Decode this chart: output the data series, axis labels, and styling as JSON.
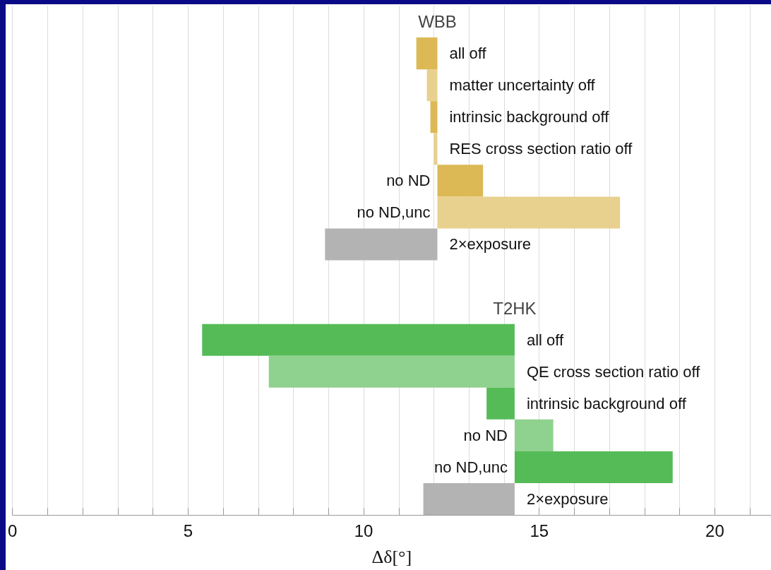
{
  "chart_data": {
    "type": "bar",
    "orientation": "horizontal",
    "xlabel": "Δδ[°]",
    "categories": [
      null,
      "all off",
      "matter uncertainty off",
      "intrinsic background off",
      "RES cross section ratio off",
      "no ND",
      "no ND,unc",
      "2×exposure",
      null,
      null,
      "all off",
      "QE cross section ratio off",
      "intrinsic background off",
      "no ND",
      "no ND,unc",
      "2×exposure"
    ],
    "base": [
      null,
      12.1,
      12.1,
      12.1,
      12.1,
      12.1,
      12.1,
      12.1,
      null,
      null,
      14.3,
      14.3,
      14.3,
      14.3,
      14.3,
      14.3
    ],
    "values": [
      null,
      -0.6,
      -0.3,
      -0.2,
      -0.1,
      1.3,
      5.2,
      -3.2,
      null,
      null,
      -8.9,
      -7.0,
      -0.8,
      1.1,
      4.5,
      -2.6
    ],
    "colors": [
      null,
      "#dcb955",
      "#e8d08e",
      "#dcb955",
      "#e8d08e",
      "#dcb955",
      "#e8d08e",
      "#b3b3b3",
      null,
      null,
      "#55bb57",
      "#8fd18f",
      "#55bb57",
      "#8fd18f",
      "#55bb57",
      "#b3b3b3"
    ],
    "annotations": [
      "WBB",
      "T2HK"
    ],
    "xlim": [
      0,
      21.6
    ],
    "xticks": [
      0,
      {
        "value": 1,
        "label": null
      },
      {
        "value": 2,
        "label": null
      },
      {
        "value": 3,
        "label": null
      },
      {
        "value": 4,
        "label": null
      },
      5,
      {
        "value": 6,
        "label": null
      },
      {
        "value": 7,
        "label": null
      },
      {
        "value": 8,
        "label": null
      },
      {
        "value": 9,
        "label": null
      },
      10,
      {
        "value": 11,
        "label": null
      },
      {
        "value": 12,
        "label": null
      },
      {
        "value": 13,
        "label": null
      },
      {
        "value": 14,
        "label": null
      },
      15,
      {
        "value": 16,
        "label": null
      },
      {
        "value": 17,
        "label": null
      },
      {
        "value": 18,
        "label": null
      },
      {
        "value": 19,
        "label": null
      },
      20,
      {
        "value": 21,
        "label": null
      }
    ],
    "grid": "x",
    "tick_labels": "x"
  }
}
